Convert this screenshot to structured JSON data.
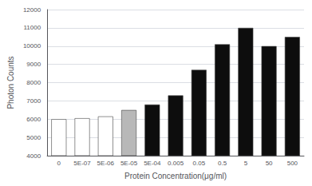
{
  "chart_data": {
    "type": "bar",
    "xlabel": "Protein Concentration(μg/ml)",
    "ylabel": "Photon Counts",
    "categories": [
      "0",
      "5E-07",
      "5E-06",
      "5E-05",
      "5E-04",
      "0.005",
      "0.05",
      "0.5",
      "5",
      "50",
      "500"
    ],
    "values": [
      6000,
      6050,
      6150,
      6500,
      6800,
      7300,
      8700,
      10100,
      11000,
      10000,
      10500
    ],
    "colors": [
      "#ffffff",
      "#ffffff",
      "#ffffff",
      "#b8b8b8",
      "#0d0d0d",
      "#0d0d0d",
      "#0d0d0d",
      "#0d0d0d",
      "#0d0d0d",
      "#0d0d0d",
      "#0d0d0d"
    ],
    "ylim": [
      4000,
      12000
    ],
    "yticks": [
      4000,
      5000,
      6000,
      7000,
      8000,
      9000,
      10000,
      11000,
      12000
    ],
    "grid": true
  }
}
